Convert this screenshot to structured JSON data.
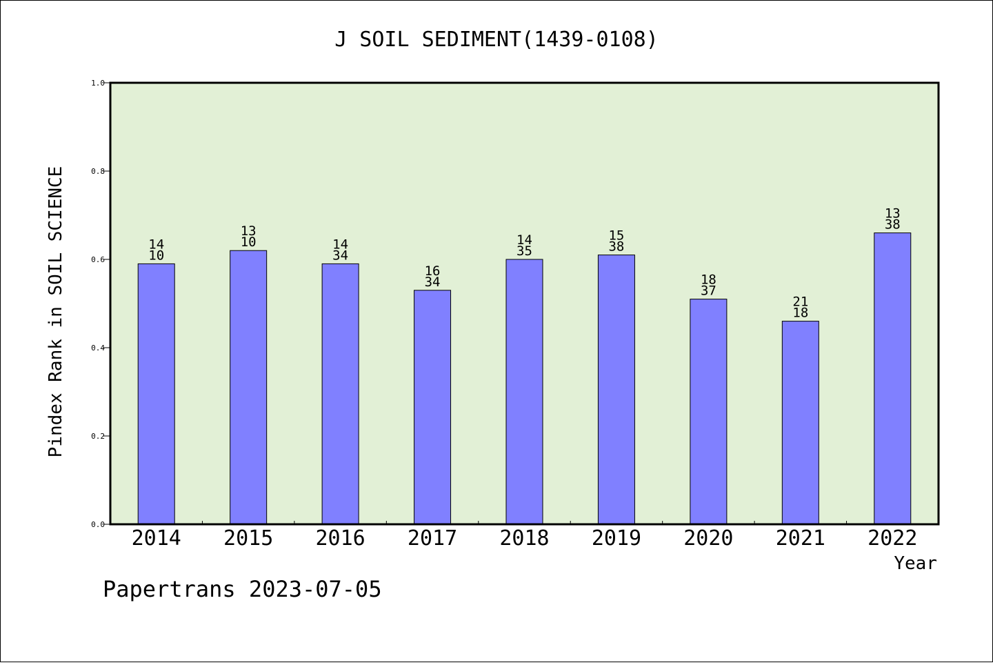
{
  "chart_data": {
    "type": "bar",
    "title": "J SOIL SEDIMENT(1439-0108)",
    "xlabel": "Year",
    "ylabel": "Pindex Rank in SOIL SCIENCE",
    "footer": "Papertrans 2023-07-05",
    "categories": [
      "2014",
      "2015",
      "2016",
      "2017",
      "2018",
      "2019",
      "2020",
      "2021",
      "2022"
    ],
    "values": [
      0.59,
      0.62,
      0.59,
      0.53,
      0.6,
      0.61,
      0.51,
      0.46,
      0.66
    ],
    "labels_top": [
      "14",
      "13",
      "14",
      "16",
      "14",
      "15",
      "18",
      "21",
      "13"
    ],
    "labels_bottom": [
      "10",
      "10",
      "34",
      "34",
      "35",
      "38",
      "37",
      "18",
      "38"
    ],
    "ylim": [
      0.0,
      1.0
    ],
    "yticks": [
      "0.0",
      "0.2",
      "0.4",
      "0.6",
      "0.8",
      "1.0"
    ],
    "bar_color": "#8080ff",
    "plot_background": "#e2f0d6"
  }
}
